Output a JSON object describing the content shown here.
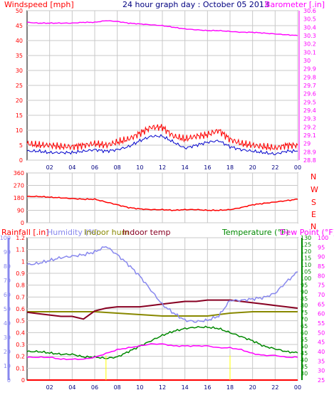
{
  "title": "24 hour graph day : October 05 2013",
  "colors": {
    "red": "#ff0000",
    "magenta": "#ff00ff",
    "blue": "#0000cc",
    "navy": "#000080",
    "lavender": "#8888ee",
    "olive": "#888800",
    "maroon": "#880022",
    "green": "#008800",
    "yellow": "#ffff00",
    "grid": "#c8c8c8"
  },
  "labels": {
    "windspeed": "Windspeed [mph]",
    "barometer": "Barometer [.in]",
    "rainfall": "Rainfall [.in]",
    "humidity": "Humidity (%)",
    "indoor_hum": "Indoor hum",
    "indoor_temp": "Indoor temp",
    "temperature": "Temperature (°F)",
    "dew_point": "Dew Point (°F)"
  },
  "x_ticks": [
    "02",
    "04",
    "06",
    "08",
    "10",
    "12",
    "14",
    "16",
    "18",
    "20",
    "22",
    "00"
  ],
  "compass": [
    "N",
    "W",
    "S",
    "E",
    "N"
  ],
  "chart_data": [
    {
      "type": "line",
      "title": "24 hour graph day : October 05 2013",
      "xlabel": "",
      "x_ticks": [
        "02",
        "04",
        "06",
        "08",
        "10",
        "12",
        "14",
        "16",
        "18",
        "20",
        "22",
        "00"
      ],
      "y_left": {
        "label": "Windspeed [mph]",
        "ticks": [
          "0",
          "5",
          "10",
          "15",
          "20",
          "25",
          "30",
          "35",
          "40",
          "45",
          "50"
        ],
        "ylim": [
          0,
          50
        ]
      },
      "y_right": {
        "label": "Barometer [.in]",
        "ticks": [
          "28.8",
          "28.9",
          "29",
          "29.1",
          "29.2",
          "29.3",
          "29.4",
          "29.5",
          "29.6",
          "29.7",
          "29.8",
          "29.9",
          "30",
          "30.1",
          "30.2",
          "30.3",
          "30.4",
          "30.5",
          "30.6"
        ],
        "ylim": [
          28.8,
          30.6
        ]
      },
      "series": [
        {
          "name": "Windspeed [mph]",
          "axis": "left",
          "kind": "gust",
          "x": [
            0,
            1,
            2,
            3,
            4,
            5,
            6,
            7,
            8,
            9,
            10,
            11,
            12,
            13,
            14,
            15,
            16,
            17,
            18,
            19,
            20,
            21,
            22,
            23,
            24
          ],
          "y": [
            5.5,
            5,
            5,
            4.5,
            4.5,
            5,
            5.5,
            5,
            6,
            7,
            9,
            11,
            11,
            8,
            7,
            8,
            8.5,
            10,
            7,
            5.5,
            5,
            4.5,
            4,
            5,
            5
          ]
        },
        {
          "name": "",
          "axis": "left",
          "kind": "average",
          "x": [
            0,
            1,
            2,
            3,
            4,
            5,
            6,
            7,
            8,
            9,
            10,
            11,
            12,
            13,
            14,
            15,
            16,
            17,
            18,
            19,
            20,
            21,
            22,
            23,
            24
          ],
          "y": [
            3,
            3,
            2.5,
            2.5,
            2.5,
            3,
            3.5,
            3,
            3.5,
            4.5,
            6.5,
            8,
            8,
            6,
            4,
            5,
            6,
            6.5,
            4.5,
            3.5,
            3,
            2.5,
            2,
            3,
            3
          ]
        },
        {
          "name": "Barometer [.in]",
          "axis": "right",
          "x": [
            0,
            1,
            2,
            3,
            4,
            5,
            6,
            7,
            8,
            9,
            10,
            11,
            12,
            13,
            14,
            15,
            16,
            17,
            18,
            19,
            20,
            21,
            22,
            23,
            24
          ],
          "y": [
            30.46,
            30.45,
            30.45,
            30.45,
            30.45,
            30.46,
            30.46,
            30.48,
            30.47,
            30.45,
            30.44,
            30.43,
            30.42,
            30.4,
            30.38,
            30.37,
            30.36,
            30.36,
            30.35,
            30.34,
            30.34,
            30.33,
            30.32,
            30.31,
            30.3
          ]
        }
      ]
    },
    {
      "type": "line",
      "y_left": {
        "label": "",
        "ticks": [
          "0",
          "90",
          "180",
          "270",
          "360"
        ],
        "ylim": [
          0,
          360
        ]
      },
      "y_right_labels": [
        "N",
        "W",
        "S",
        "E",
        "N"
      ],
      "series": [
        {
          "name": "",
          "x": [
            0,
            1,
            2,
            3,
            4,
            5,
            6,
            7,
            8,
            9,
            10,
            11,
            12,
            13,
            14,
            15,
            16,
            17,
            18,
            19,
            20,
            21,
            22,
            23,
            24
          ],
          "y": [
            190,
            190,
            185,
            180,
            175,
            170,
            170,
            150,
            130,
            110,
            100,
            95,
            95,
            90,
            95,
            95,
            90,
            90,
            95,
            110,
            130,
            140,
            150,
            160,
            170
          ]
        }
      ]
    },
    {
      "type": "line",
      "x_ticks": [
        "02",
        "04",
        "06",
        "08",
        "10",
        "12",
        "14",
        "16",
        "18",
        "20",
        "22",
        "00"
      ],
      "y_rain": {
        "label": "Rainfall [.in]",
        "ticks": [
          "0",
          "0.1",
          "0.2",
          "0.3",
          "0.4",
          "0.5",
          "0.6",
          "0.7",
          "0.8",
          "0.9",
          "1",
          "1.1",
          "1.2"
        ],
        "ylim": [
          0,
          1.2
        ]
      },
      "y_hum": {
        "label": "Humidity (%)",
        "ticks": [
          "0",
          "10",
          "20",
          "30",
          "40",
          "50",
          "60",
          "70",
          "80",
          "90",
          "100"
        ],
        "ylim": [
          0,
          100
        ]
      },
      "y_temp": {
        "label": "Temperature (°F)",
        "ticks": [
          "30",
          "35",
          "40",
          "45",
          "50",
          "55",
          "60",
          "65",
          "70",
          "75",
          "80",
          "85",
          "90",
          "95",
          "100",
          "105",
          "110",
          "115",
          "120",
          "125",
          "130"
        ],
        "ylim": [
          25,
          130
        ]
      },
      "y_dew": {
        "label": "Dew Point (°F)",
        "ticks": [
          "25",
          "30",
          "35",
          "40",
          "45",
          "50",
          "55",
          "60",
          "65",
          "70",
          "75",
          "80",
          "85",
          "90",
          "95",
          "100"
        ],
        "ylim": [
          25,
          100
        ]
      },
      "series": [
        {
          "name": "Rainfall [.in]",
          "axis": "rain",
          "x": [
            0,
            24
          ],
          "y": [
            0,
            0
          ]
        },
        {
          "name": "Humidity (%)",
          "axis": "hum",
          "x": [
            0,
            1,
            2,
            3,
            4,
            5,
            6,
            7,
            8,
            9,
            10,
            11,
            12,
            13,
            14,
            15,
            16,
            17,
            18,
            19,
            20,
            21,
            22,
            23,
            24
          ],
          "y": [
            81,
            82,
            84,
            86,
            87,
            88,
            90,
            94,
            88,
            81,
            73,
            63,
            53,
            47,
            42,
            41,
            42,
            45,
            56,
            56,
            57,
            58,
            61,
            69,
            76
          ]
        },
        {
          "name": "Indoor hum",
          "axis": "hum",
          "x": [
            0,
            2,
            4,
            6,
            8,
            10,
            12,
            14,
            16,
            18,
            20,
            22,
            24
          ],
          "y": [
            48,
            48,
            48,
            48,
            47,
            46,
            45,
            45,
            45,
            47,
            48,
            48,
            48
          ]
        },
        {
          "name": "Indoor temp",
          "axis": "temp",
          "x": [
            0,
            1,
            2,
            3,
            4,
            5,
            6,
            7,
            8,
            9,
            10,
            11,
            12,
            13,
            14,
            15,
            16,
            17,
            18,
            19,
            20,
            21,
            22,
            23,
            24
          ],
          "y": [
            75,
            74,
            73,
            72,
            72,
            70,
            76,
            78,
            79,
            79,
            79,
            80,
            81,
            82,
            83,
            83,
            84,
            84,
            84,
            83,
            82,
            81,
            80,
            79,
            78
          ]
        },
        {
          "name": "Temperature (°F)",
          "axis": "temp",
          "x": [
            0,
            1,
            2,
            3,
            4,
            5,
            6,
            7,
            8,
            9,
            10,
            11,
            12,
            13,
            14,
            15,
            16,
            17,
            18,
            19,
            20,
            21,
            22,
            23,
            24
          ],
          "y": [
            46,
            46,
            45,
            44,
            44,
            42,
            42,
            41,
            42,
            46,
            50,
            54,
            58,
            61,
            63,
            64,
            64,
            63,
            60,
            57,
            54,
            50,
            48,
            46,
            45
          ]
        },
        {
          "name": "Dew Point (°F)",
          "axis": "dew",
          "x": [
            0,
            1,
            2,
            3,
            4,
            5,
            6,
            7,
            8,
            9,
            10,
            11,
            12,
            13,
            14,
            15,
            16,
            17,
            18,
            19,
            20,
            21,
            22,
            23,
            24
          ],
          "y": [
            37,
            37,
            37,
            36,
            36,
            36,
            37,
            39,
            41,
            42,
            43,
            44,
            44,
            43,
            43,
            43,
            43,
            42,
            42,
            41,
            39,
            38,
            38,
            37,
            37
          ]
        }
      ]
    }
  ]
}
